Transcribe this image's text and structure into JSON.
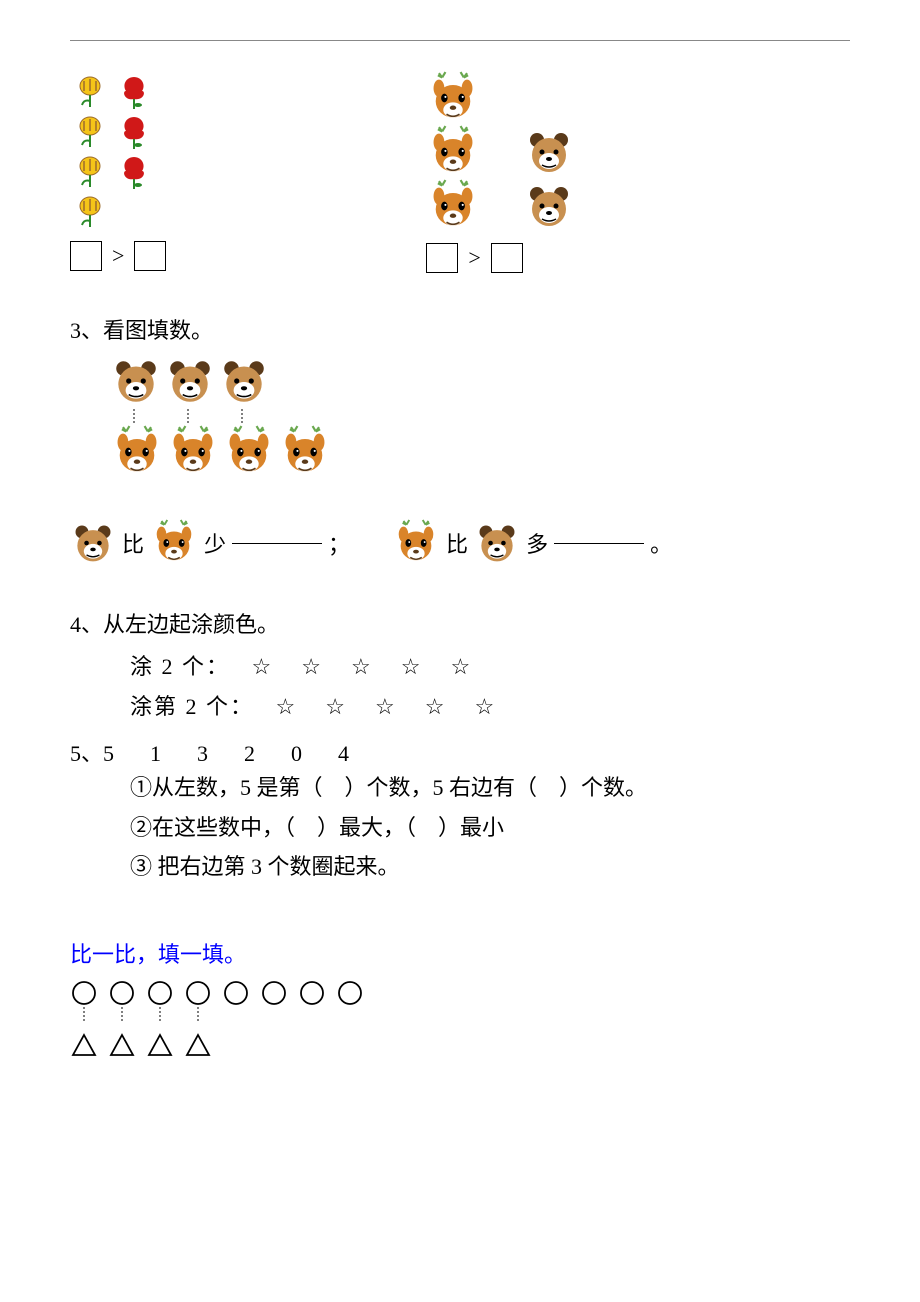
{
  "q2_left": {
    "flower_yellow_count": 4,
    "flower_red_count": 3,
    "comparator": ">"
  },
  "q2_right": {
    "deer_count": 3,
    "bear_count": 2,
    "comparator": ">"
  },
  "q3": {
    "heading": "3、看图填数。",
    "bears_count": 3,
    "deers_count": 4,
    "line1_a": "比",
    "line1_b": "少",
    "line1_end": "；",
    "line2_a": "比",
    "line2_b": "多",
    "line2_end": "。"
  },
  "q4": {
    "heading": "4、从左边起涂颜色。",
    "row1_label": "涂 2 个：",
    "row2_label": "涂第 2 个：",
    "star": "☆",
    "star_count": 5
  },
  "q5": {
    "heading_prefix": "5、",
    "numbers": [
      "5",
      "1",
      "3",
      "2",
      "0",
      "4"
    ],
    "line1": "①从左数，5 是第（　）个数，5 右边有（　）个数。",
    "line2": "②在这些数中，（　）最大，（　）最小",
    "line3": "③ 把右边第 3 个数圈起来。"
  },
  "q6": {
    "heading": "比一比，填一填。",
    "circles_count": 8,
    "triangles_count": 4
  },
  "colors": {
    "yellow": "#f5c518",
    "red": "#d01818",
    "green": "#2a8a2a",
    "brown": "#9b6b2e",
    "orange": "#e07a1f",
    "bear_face": "#c89050",
    "bear_dark": "#5a3a1a",
    "deer_face": "#d9842a",
    "deer_antler": "#6aa84f",
    "black": "#000000",
    "white": "#ffffff",
    "blue": "#0000ff"
  }
}
